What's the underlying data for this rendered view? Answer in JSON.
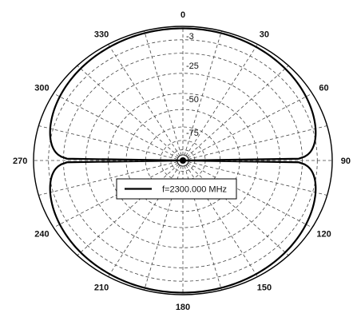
{
  "chart_data": {
    "type": "polar",
    "angle_labels": [
      "0",
      "30",
      "60",
      "90",
      "120",
      "150",
      "180",
      "210",
      "240",
      "270",
      "300",
      "330"
    ],
    "angle_ticks_deg": [
      0,
      30,
      60,
      90,
      120,
      150,
      180,
      210,
      240,
      270,
      300,
      330
    ],
    "radial_labels": [
      "-3",
      "-25",
      "-50",
      "-75"
    ],
    "radial_levels": [
      -3,
      -25,
      -50,
      -75
    ],
    "grid": true,
    "legend": {
      "placement": "center-bottom",
      "entries": [
        "f=2300.000 MHz"
      ]
    },
    "series": [
      {
        "name": "f=2300.000 MHz",
        "pattern": "dipole",
        "angle_deg": [
          0,
          15,
          30,
          45,
          60,
          75,
          85,
          90,
          95,
          105,
          120,
          135,
          150,
          165,
          180,
          195,
          210,
          225,
          240,
          255,
          265,
          270,
          275,
          285,
          300,
          315,
          330,
          345,
          360
        ],
        "relative_gain_db": [
          -0.3,
          -0.5,
          -1.2,
          -2.8,
          -5.5,
          -11.0,
          -24.0,
          -95.0,
          -24.0,
          -11.0,
          -5.5,
          -2.8,
          -1.2,
          -0.5,
          -0.3,
          -0.5,
          -1.2,
          -2.8,
          -5.5,
          -11.0,
          -24.0,
          -95.0,
          -24.0,
          -11.0,
          -5.5,
          -2.8,
          -1.2,
          -0.5,
          -0.3
        ]
      }
    ]
  }
}
